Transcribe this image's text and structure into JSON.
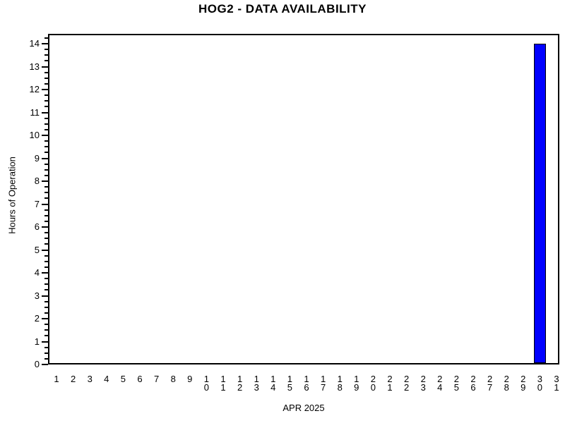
{
  "chart_data": {
    "type": "bar",
    "title": "HOG2 - DATA AVAILABILITY",
    "xlabel": "APR 2025",
    "ylabel": "Hours of Operation",
    "categories": [
      "1",
      "2",
      "3",
      "4",
      "5",
      "6",
      "7",
      "8",
      "9",
      "10",
      "11",
      "12",
      "13",
      "14",
      "15",
      "16",
      "17",
      "18",
      "19",
      "20",
      "21",
      "22",
      "23",
      "24",
      "25",
      "26",
      "27",
      "28",
      "29",
      "30",
      "31"
    ],
    "values": [
      0,
      0,
      0,
      0,
      0,
      0,
      0,
      0,
      0,
      0,
      0,
      0,
      0,
      0,
      0,
      0,
      0,
      0,
      0,
      0,
      0,
      0,
      0,
      0,
      0,
      0,
      0,
      0,
      0,
      14,
      0
    ],
    "yticks": [
      0,
      1,
      2,
      3,
      4,
      5,
      6,
      7,
      8,
      9,
      10,
      11,
      12,
      13,
      14
    ],
    "ylim": [
      0,
      14
    ],
    "ytick_step": 1,
    "minor_ticks_per_interval": 3,
    "bar_color": "#0000ff",
    "bar_outline_color": "#000000",
    "axis_color": "#000000",
    "text_color": "#000000",
    "background_color": "#ffffff",
    "grid": "off",
    "legend": "none"
  }
}
